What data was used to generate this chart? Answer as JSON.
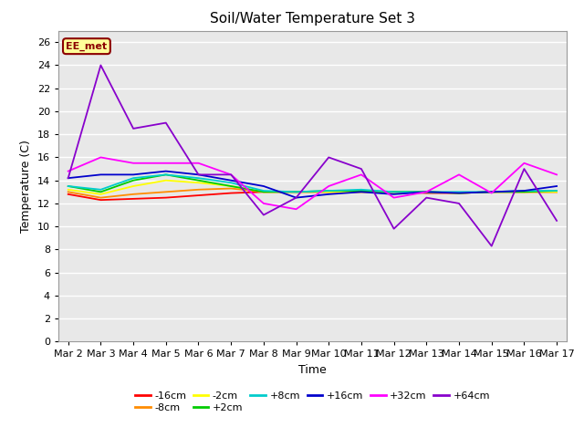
{
  "title": "Soil/Water Temperature Set 3",
  "xlabel": "Time",
  "ylabel": "Temperature (C)",
  "station_label": "EE_met",
  "ylim": [
    0,
    27
  ],
  "yticks": [
    0,
    2,
    4,
    6,
    8,
    10,
    12,
    14,
    16,
    18,
    20,
    22,
    24,
    26
  ],
  "x_labels": [
    "Mar 2",
    "Mar 3",
    "Mar 4",
    "Mar 5",
    "Mar 6",
    "Mar 7",
    "Mar 8",
    "Mar 9",
    "Mar 10",
    "Mar 11",
    "Mar 12",
    "Mar 13",
    "Mar 14",
    "Mar 15",
    "Mar 16",
    "Mar 17"
  ],
  "series_order": [
    "-16cm",
    "-8cm",
    "-2cm",
    "+2cm",
    "+8cm",
    "+16cm",
    "+32cm",
    "+64cm"
  ],
  "series": {
    "-16cm": {
      "color": "#ff0000",
      "data": [
        12.8,
        12.3,
        12.4,
        12.5,
        12.7,
        12.9,
        13.0,
        13.0,
        13.0,
        13.0,
        13.0,
        12.9,
        12.9,
        13.0,
        13.0,
        13.0
      ]
    },
    "-8cm": {
      "color": "#ff8c00",
      "data": [
        13.0,
        12.5,
        12.8,
        13.0,
        13.2,
        13.3,
        13.0,
        13.0,
        13.0,
        13.0,
        13.0,
        13.0,
        12.9,
        13.0,
        13.0,
        13.0
      ]
    },
    "-2cm": {
      "color": "#ffff00",
      "data": [
        13.2,
        12.8,
        13.5,
        14.0,
        13.8,
        13.5,
        13.0,
        13.0,
        13.0,
        13.0,
        13.0,
        13.0,
        12.9,
        13.0,
        13.0,
        13.0
      ]
    },
    "+2cm": {
      "color": "#00cc00",
      "data": [
        13.5,
        13.0,
        14.0,
        14.5,
        14.0,
        13.5,
        13.0,
        13.0,
        13.1,
        13.1,
        13.0,
        13.0,
        12.9,
        13.0,
        13.0,
        13.1
      ]
    },
    "+8cm": {
      "color": "#00cccc",
      "data": [
        13.5,
        13.2,
        14.2,
        14.5,
        14.2,
        13.8,
        13.1,
        13.0,
        13.1,
        13.2,
        13.0,
        13.0,
        13.0,
        13.0,
        13.1,
        13.1
      ]
    },
    "+16cm": {
      "color": "#0000cc",
      "data": [
        14.2,
        14.5,
        14.5,
        14.8,
        14.5,
        14.0,
        13.5,
        12.5,
        12.8,
        13.0,
        12.8,
        13.0,
        12.9,
        13.0,
        13.1,
        13.5
      ]
    },
    "+32cm": {
      "color": "#ff00ff",
      "data": [
        14.8,
        16.0,
        15.5,
        15.5,
        15.5,
        14.5,
        12.0,
        11.5,
        13.5,
        14.5,
        12.5,
        13.0,
        14.5,
        12.9,
        15.5,
        14.5
      ]
    },
    "+64cm": {
      "color": "#8800cc",
      "data": [
        14.2,
        24.0,
        18.5,
        19.0,
        14.5,
        14.5,
        11.0,
        12.5,
        16.0,
        15.0,
        9.8,
        12.5,
        12.0,
        8.3,
        15.0,
        10.5
      ]
    }
  },
  "bg_color": "#e8e8e8",
  "grid_color": "#ffffff",
  "fig_bg": "#ffffff",
  "legend_row1": [
    "-16cm",
    "-8cm",
    "-2cm",
    "+2cm",
    "+8cm",
    "+16cm"
  ],
  "legend_row2": [
    "+32cm",
    "+64cm"
  ]
}
